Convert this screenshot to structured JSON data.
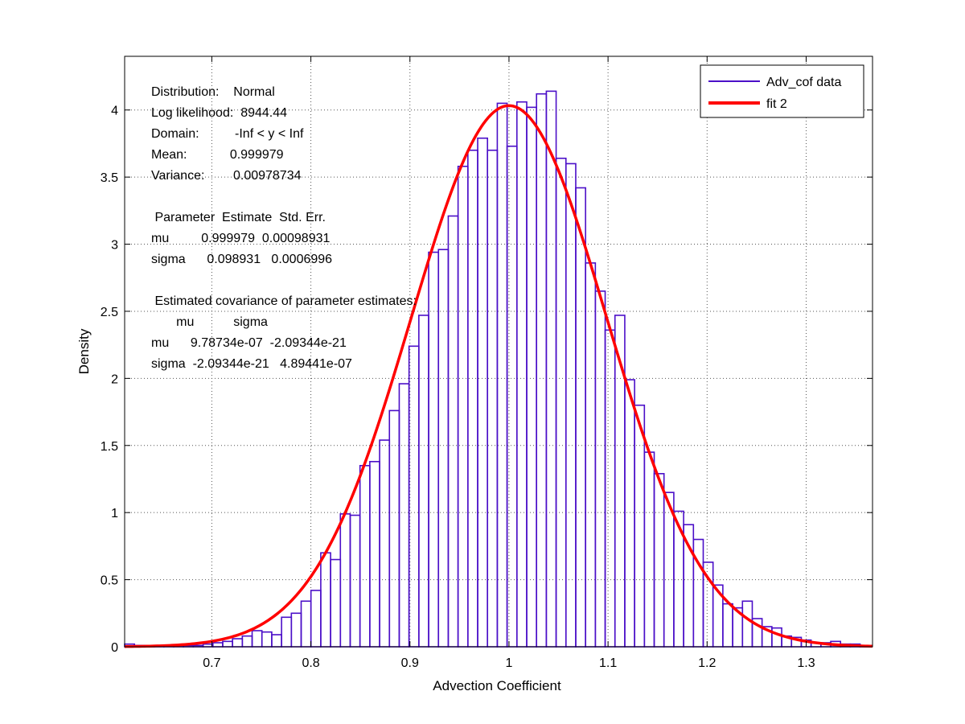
{
  "chart_data": {
    "type": "bar",
    "title": "",
    "xlabel": "Advection Coefficient",
    "ylabel": "Density",
    "xlim": [
      0.612,
      1.367
    ],
    "ylim": [
      0,
      4.4
    ],
    "grid": true,
    "legend_position": "top-right",
    "x_ticks": [
      0.7,
      0.8,
      0.9,
      1,
      1.1,
      1.2,
      1.3
    ],
    "x_tick_labels": [
      "0.7",
      "0.8",
      "0.9",
      "1",
      "1.1",
      "1.2",
      "1.3"
    ],
    "y_ticks": [
      0,
      0.5,
      1,
      1.5,
      2,
      2.5,
      3,
      3.5,
      4
    ],
    "y_tick_labels": [
      "0",
      "0.5",
      "1",
      "1.5",
      "2",
      "2.5",
      "3",
      "3.5",
      "4"
    ],
    "histogram": {
      "name": "Adv_cof data",
      "color": "#4b0fc8",
      "bin_start": 0.612,
      "bin_width": 0.0099,
      "densities": [
        0.02,
        0.01,
        0.01,
        0.01,
        0.01,
        0.01,
        0.01,
        0.01,
        0.02,
        0.03,
        0.04,
        0.06,
        0.08,
        0.12,
        0.11,
        0.09,
        0.22,
        0.25,
        0.34,
        0.42,
        0.7,
        0.65,
        0.99,
        0.98,
        1.35,
        1.38,
        1.54,
        1.76,
        1.96,
        2.24,
        2.47,
        2.94,
        2.96,
        3.21,
        3.58,
        3.7,
        3.79,
        3.7,
        4.05,
        3.73,
        4.06,
        4.02,
        4.12,
        4.14,
        3.64,
        3.6,
        3.42,
        2.86,
        2.65,
        2.36,
        2.47,
        1.99,
        1.8,
        1.45,
        1.29,
        1.15,
        1.01,
        0.91,
        0.8,
        0.63,
        0.46,
        0.32,
        0.29,
        0.34,
        0.21,
        0.15,
        0.14,
        0.08,
        0.07,
        0.05,
        0.03,
        0.03,
        0.04,
        0.02,
        0.02,
        0.01
      ]
    },
    "fit": {
      "name": "fit 2",
      "color": "#ff0000",
      "distribution": "normal",
      "mu": 0.999979,
      "sigma": 0.098931
    },
    "annotation_lines": [
      "Distribution:    Normal",
      "Log likelihood:  8944.44",
      "Domain:          -Inf < y < Inf",
      "Mean:            0.999979",
      "Variance:        0.00978734",
      "",
      " Parameter  Estimate  Std. Err.",
      "mu         0.999979  0.00098931",
      "sigma      0.098931   0.0006996",
      "",
      " Estimated covariance of parameter estimates:",
      "       mu           sigma",
      "mu      9.78734e-07  -2.09344e-21",
      "sigma  -2.09344e-21   4.89441e-07"
    ]
  }
}
